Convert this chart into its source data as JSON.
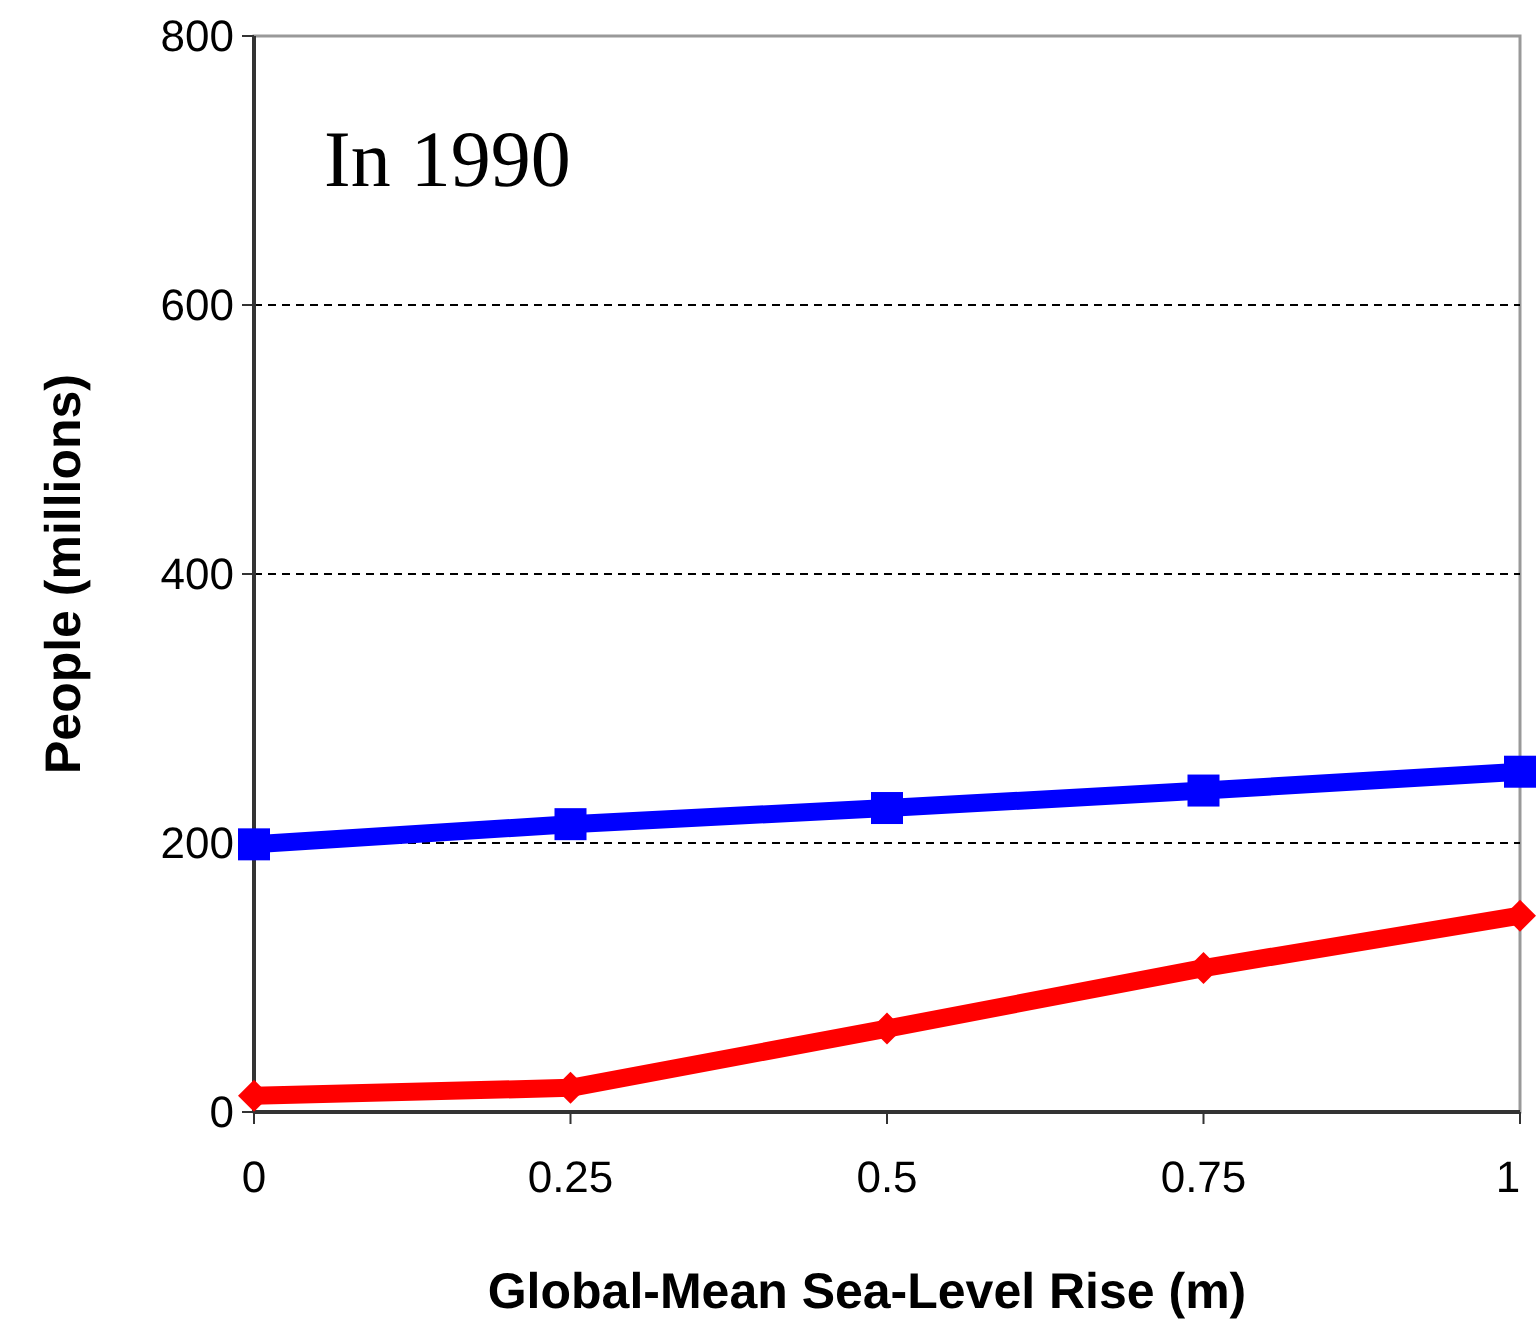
{
  "chart_data": {
    "type": "line",
    "xlabel": "Global-Mean Sea-Level Rise (m)",
    "ylabel": "People (millions)",
    "annotations": [
      "In 1990"
    ],
    "x": [
      0,
      0.25,
      0.5,
      0.75,
      1
    ],
    "series": [
      {
        "color": "#0000ff",
        "marker": "square",
        "values": [
          199,
          214,
          226,
          239,
          253
        ]
      },
      {
        "color": "#ff0000",
        "marker": "diamond",
        "values": [
          12,
          18,
          62,
          107,
          146
        ]
      }
    ],
    "xlim": [
      0,
      1
    ],
    "xticks": [
      0,
      0.25,
      0.5,
      0.75,
      1
    ],
    "ylim": [
      0,
      800
    ],
    "yticks": [
      0,
      200,
      400,
      600,
      800
    ],
    "grid": "y",
    "line_style": "solid"
  }
}
